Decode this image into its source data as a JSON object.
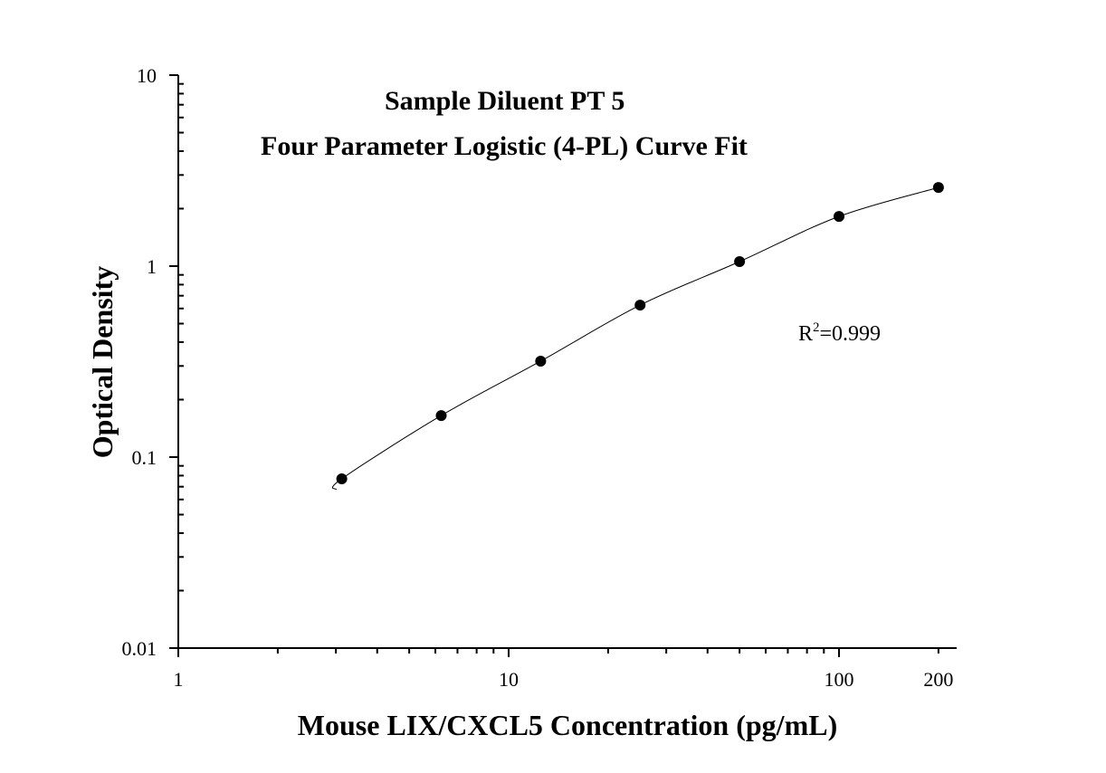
{
  "chart_data": {
    "type": "scatter",
    "title_line1": "Sample Diluent PT 5",
    "title_line2": "Four Parameter Logistic (4-PL) Curve Fit",
    "xlabel": "Mouse LIX/CXCL5 Concentration (pg/mL)",
    "ylabel": "Optical Density",
    "x_scale": "log",
    "y_scale": "log",
    "xlim": [
      1,
      227
    ],
    "ylim": [
      0.01,
      10
    ],
    "x_ticks": [
      {
        "value": 1,
        "label": "1"
      },
      {
        "value": 10,
        "label": "10"
      },
      {
        "value": 100,
        "label": "100"
      },
      {
        "value": 200,
        "label": "200"
      }
    ],
    "y_ticks": [
      {
        "value": 0.01,
        "label": "0.01"
      },
      {
        "value": 0.1,
        "label": "0.1"
      },
      {
        "value": 1,
        "label": "1"
      },
      {
        "value": 10,
        "label": "10"
      }
    ],
    "grid": false,
    "annotation": {
      "prefix": "R",
      "superscript": "2",
      "suffix": "=0.999"
    },
    "series": [
      {
        "x": [
          3.125,
          6.25,
          12.5,
          25,
          50,
          100,
          200
        ],
        "y": [
          0.077,
          0.165,
          0.318,
          0.625,
          1.056,
          1.82,
          2.58
        ],
        "marker": "filled-circle",
        "fit_line": true,
        "color": "#000000"
      }
    ]
  }
}
